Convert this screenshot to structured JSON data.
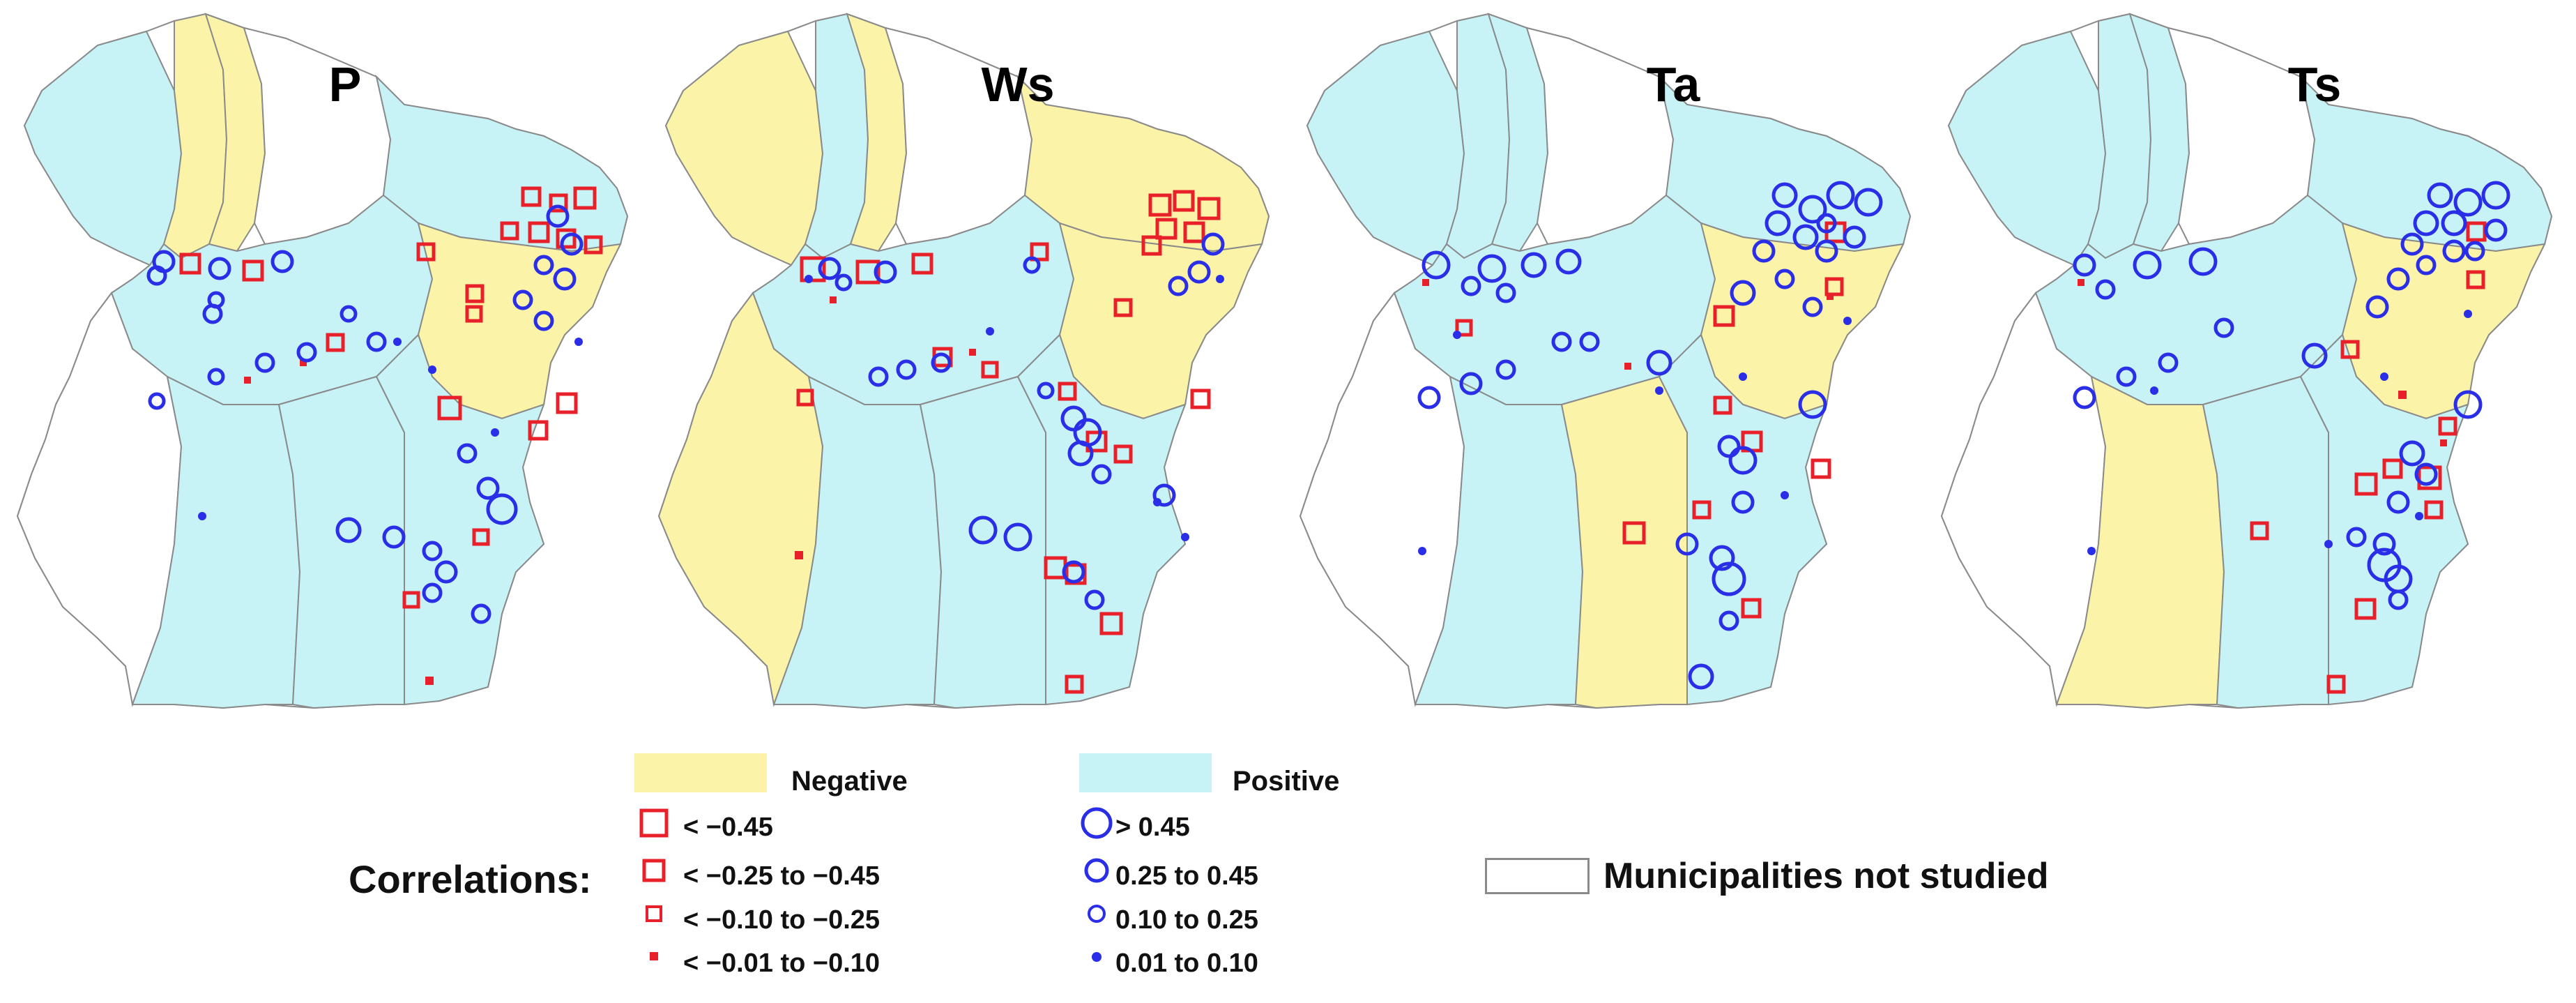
{
  "panels": [
    {
      "title": "P",
      "dominant": "positive"
    },
    {
      "title": "Ws",
      "dominant": "negative-north"
    },
    {
      "title": "Ta",
      "dominant": "positive"
    },
    {
      "title": "Ts",
      "dominant": "positive"
    }
  ],
  "legend": {
    "negative_label": "Negative",
    "positive_label": "Positive",
    "correlations_label": "Correlations:",
    "negative_classes": [
      "< −0.45",
      "< −0.25 to −0.45",
      "< −0.10 to −0.25",
      "< −0.01 to −0.10"
    ],
    "positive_classes": [
      "> 0.45",
      "0.25 to 0.45",
      "0.10 to 0.25",
      "0.01 to 0.10"
    ],
    "not_studied_label": "Municipalities not studied"
  },
  "colors": {
    "negative_fill": "#fbf3a8",
    "positive_fill": "#c7f3f6",
    "not_studied_fill": "#ffffff",
    "border": "#8a8a8a",
    "negative_marker": "#e8202a",
    "positive_marker": "#2a2ee6"
  }
}
